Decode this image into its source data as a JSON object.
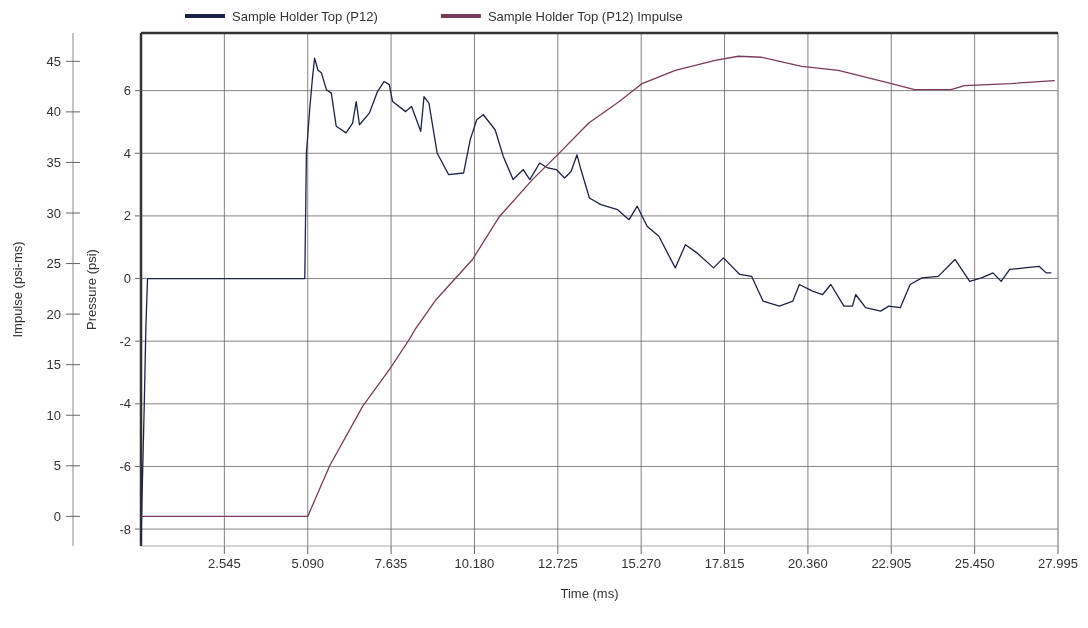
{
  "chart_data": {
    "type": "line",
    "xlabel": "Time (ms)",
    "ylabel": "Pressure (psi)",
    "y2label": "Impulse (psi-ms)",
    "xlim": [
      0,
      27.995
    ],
    "xticks": [
      2.545,
      {
        "value": 5.09,
        "label": "5.090"
      },
      7.635,
      {
        "value": 10.18,
        "label": "10.180"
      },
      12.725,
      {
        "value": 15.27,
        "label": "15.270"
      },
      17.815,
      {
        "value": 20.36,
        "label": "20.360"
      },
      22.905,
      {
        "value": 25.45,
        "label": "25.450"
      },
      27.995
    ],
    "ylim": [
      -8.54,
      7.84
    ],
    "yticks": [
      -8,
      -6,
      -4,
      -2,
      0,
      2,
      4,
      6
    ],
    "y2lim": [
      -2.93,
      47.8
    ],
    "y2ticks": [
      0,
      5,
      10,
      15,
      20,
      25,
      30,
      35,
      40,
      45
    ],
    "grid": true,
    "legend": "top",
    "line_style": "solid",
    "marker": "none",
    "series": [
      {
        "name": "Sample Holder Top (P12)",
        "color": "#1c2445",
        "x": [
          0,
          0.1,
          0.15,
          0.2,
          5.0,
          5.05,
          5.15,
          5.23,
          5.3,
          5.4,
          5.51,
          5.66,
          5.81,
          5.96,
          6.26,
          6.46,
          6.57,
          6.67,
          6.97,
          7.22,
          7.42,
          7.58,
          7.68,
          8.08,
          8.26,
          8.54,
          8.64,
          8.79,
          9.04,
          9.39,
          9.85,
          10.05,
          10.25,
          10.45,
          10.81,
          11.06,
          11.36,
          11.67,
          11.87,
          12.17,
          12.42,
          12.68,
          12.93,
          13.13,
          13.31,
          13.43,
          13.69,
          14.04,
          14.55,
          14.9,
          15.15,
          15.45,
          15.81,
          16.31,
          16.62,
          16.97,
          17.48,
          17.78,
          18.28,
          18.64,
          18.99,
          19.49,
          19.9,
          20.1,
          20.5,
          20.81,
          21.06,
          21.46,
          21.72,
          21.82,
          22.12,
          22.58,
          22.83,
          23.18,
          23.48,
          23.84,
          24.34,
          24.85,
          25.3,
          25.66,
          26.01,
          26.26,
          26.52,
          26.97,
          27.42,
          27.63,
          27.78
        ],
        "values": [
          -8.4,
          -4,
          -1.5,
          0,
          0,
          4.0,
          5.4,
          6.35,
          7.04,
          6.66,
          6.56,
          6.03,
          5.92,
          4.86,
          4.65,
          4.96,
          5.65,
          4.91,
          5.28,
          5.97,
          6.29,
          6.19,
          5.65,
          5.33,
          5.49,
          4.7,
          5.81,
          5.6,
          4.01,
          3.32,
          3.37,
          4.43,
          5.07,
          5.23,
          4.75,
          3.9,
          3.16,
          3.48,
          3.16,
          3.69,
          3.53,
          3.48,
          3.21,
          3.42,
          3.95,
          3.48,
          2.57,
          2.36,
          2.2,
          1.88,
          2.31,
          1.67,
          1.35,
          0.34,
          1.08,
          0.82,
          0.34,
          0.66,
          0.13,
          0.07,
          -0.72,
          -0.88,
          -0.72,
          -0.19,
          -0.4,
          -0.51,
          -0.19,
          -0.88,
          -0.88,
          -0.51,
          -0.93,
          -1.04,
          -0.88,
          -0.93,
          -0.19,
          0.02,
          0.07,
          0.61,
          -0.09,
          0.02,
          0.18,
          -0.09,
          0.29,
          0.34,
          0.39,
          0.18,
          0.18
        ]
      },
      {
        "name": "Sample Holder Top (P12) Impulse",
        "color": "#7a3a5a",
        "axis": "y2",
        "x": [
          0,
          5.09,
          5.76,
          6.77,
          7.58,
          8.19,
          8.39,
          9.0,
          10.12,
          10.93,
          11.95,
          12.76,
          13.67,
          14.59,
          15.3,
          16.31,
          17.53,
          18.24,
          18.95,
          20.17,
          21.29,
          22.91,
          23.62,
          24.73,
          25.14,
          26.56,
          27.88
        ],
        "values": [
          0,
          0,
          5.0,
          10.9,
          14.5,
          17.5,
          18.6,
          21.4,
          25.4,
          29.6,
          33.3,
          35.9,
          38.9,
          41.0,
          42.8,
          44.1,
          45.1,
          45.5,
          45.4,
          44.5,
          44.1,
          42.8,
          42.2,
          42.2,
          42.6,
          42.8,
          43.1
        ]
      }
    ]
  }
}
